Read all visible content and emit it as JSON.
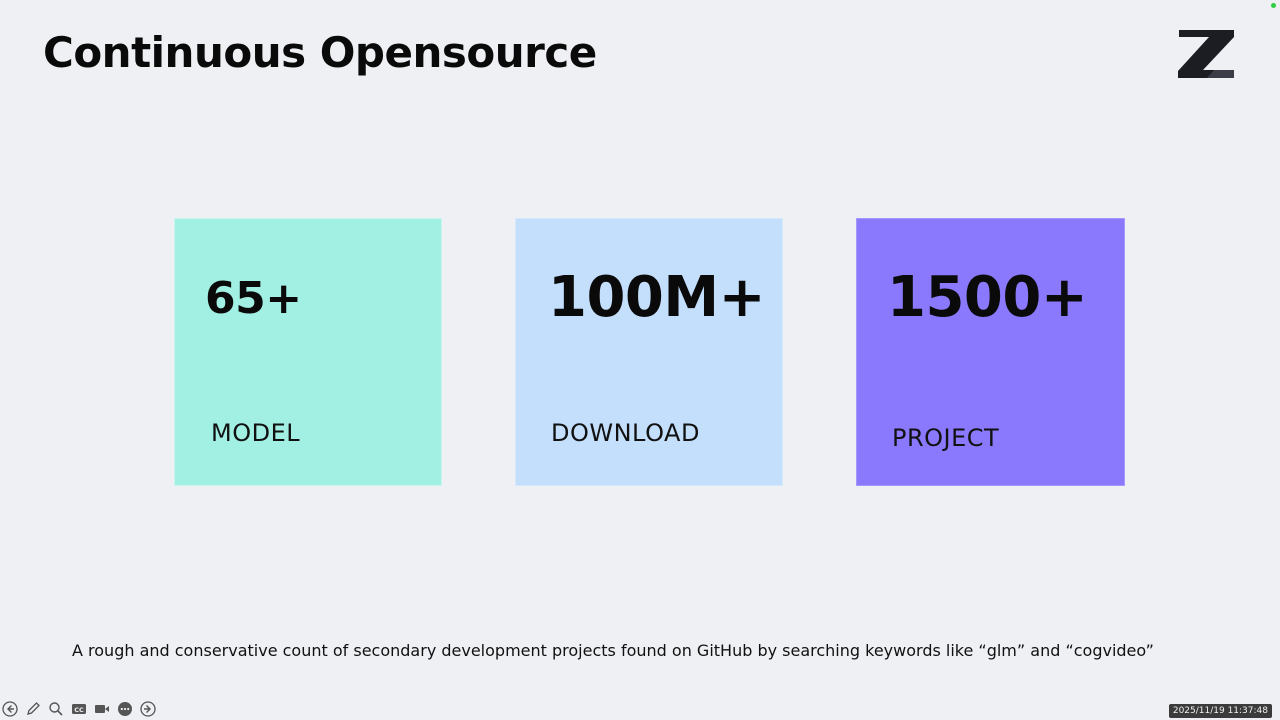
{
  "slide": {
    "title": "Continuous Opensource",
    "logo_icon": "z-logo-icon",
    "cards": [
      {
        "value": "65+",
        "label": "MODEL",
        "color": "#a2f0e3"
      },
      {
        "value": "100M+",
        "label": "DOWNLOAD",
        "color": "#c3dffc"
      },
      {
        "value": "1500+",
        "label": "PROJECT",
        "color": "#8a79fd"
      }
    ],
    "footnote": "A rough and conservative count of secondary development projects found on GitHub by searching keywords like “glm” and “cogvideo”"
  },
  "toolbar": {
    "buttons": [
      {
        "icon": "back-arrow-icon"
      },
      {
        "icon": "pen-icon"
      },
      {
        "icon": "magnifier-icon"
      },
      {
        "icon": "closed-captions-icon"
      },
      {
        "icon": "video-camera-icon"
      },
      {
        "icon": "more-options-icon"
      },
      {
        "icon": "forward-arrow-icon"
      }
    ]
  },
  "recording": {
    "timestamp": "2025/11/19 11:37:48",
    "status_color": "#2ecc40"
  }
}
